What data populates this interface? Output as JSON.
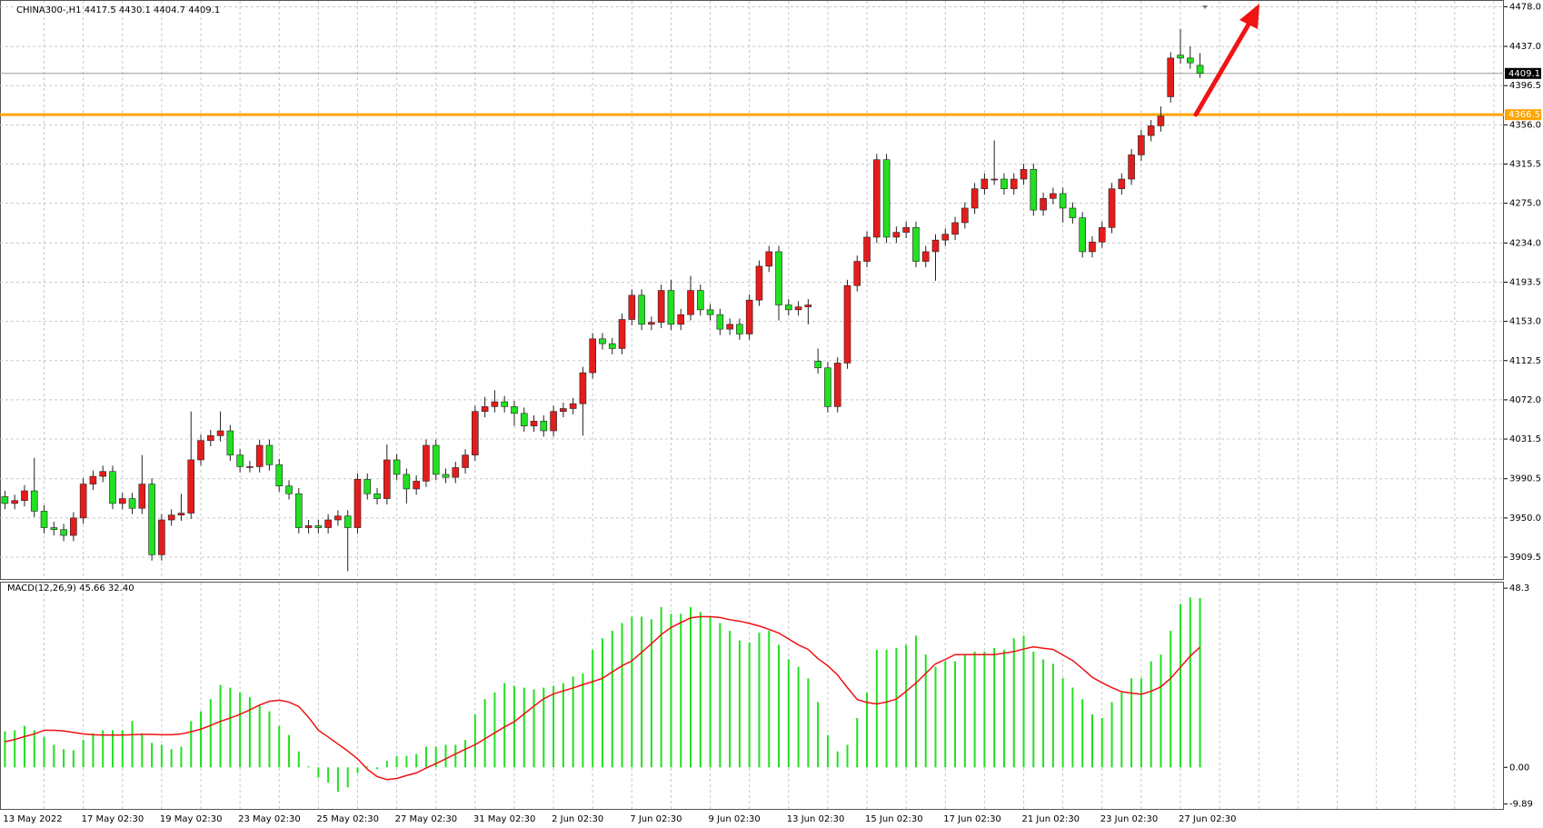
{
  "chart_data": [
    {
      "type": "candlestick",
      "title": "CHINA300-,H1  4417.5 4430.1 4404.7 4409.1",
      "up_color": "#e51c1c",
      "down_color": "#22e022",
      "categories": [
        "13 May 2022",
        null,
        null,
        null,
        null,
        null,
        null,
        null,
        "17 May 02:30",
        null,
        null,
        null,
        null,
        null,
        null,
        null,
        "19 May 02:30",
        null,
        null,
        null,
        null,
        null,
        null,
        null,
        "23 May 02:30",
        null,
        null,
        null,
        null,
        null,
        null,
        null,
        "25 May 02:30",
        null,
        null,
        null,
        null,
        null,
        null,
        null,
        "27 May 02:30",
        null,
        null,
        null,
        null,
        null,
        null,
        null,
        "31 May 02:30",
        null,
        null,
        null,
        null,
        null,
        null,
        null,
        "2 Jun 02:30",
        null,
        null,
        null,
        null,
        null,
        null,
        null,
        "7 Jun 02:30",
        null,
        null,
        null,
        null,
        null,
        null,
        null,
        "9 Jun 02:30",
        null,
        null,
        null,
        null,
        null,
        null,
        null,
        "13 Jun 02:30",
        null,
        null,
        null,
        null,
        null,
        null,
        null,
        "15 Jun 02:30",
        null,
        null,
        null,
        null,
        null,
        null,
        null,
        "17 Jun 02:30",
        null,
        null,
        null,
        null,
        null,
        null,
        null,
        "21 Jun 02:30",
        null,
        null,
        null,
        null,
        null,
        null,
        null,
        "23 Jun 02:30",
        null,
        null,
        null,
        null,
        null,
        null,
        null,
        "27 Jun 02:30",
        null,
        null
      ],
      "open": [
        3972,
        3965,
        3968,
        3978,
        3957,
        3940,
        3938,
        3932,
        3950,
        3985,
        3993,
        3998,
        3965,
        3970,
        3960,
        3985,
        3912,
        3948,
        3953,
        3955,
        4010,
        4030,
        4035,
        4040,
        4015,
        4003,
        4003,
        4025,
        4005,
        3983,
        3975,
        3940,
        3942,
        3940,
        3948,
        3952,
        3940,
        3990,
        3975,
        3970,
        4010,
        3995,
        3980,
        3988,
        4025,
        3995,
        3992,
        4002,
        4015,
        4060,
        4065,
        4070,
        4065,
        4058,
        4045,
        4050,
        4040,
        4060,
        4063,
        4068,
        4100,
        4135,
        4130,
        4125,
        4155,
        4180,
        4150,
        4152,
        4185,
        4150,
        4160,
        4185,
        4165,
        4160,
        4145,
        4150,
        4140,
        4175,
        4210,
        4225,
        4170,
        4165,
        4168,
        4112,
        4105,
        4065,
        4110,
        4190,
        4215,
        4240,
        4320,
        4240,
        4245,
        4250,
        4215,
        4225,
        4237,
        4243,
        4255,
        4270,
        4290,
        4300,
        4300,
        4290,
        4300,
        4310,
        4268,
        4280,
        4285,
        4270,
        4260,
        4225,
        4235,
        4250,
        4290,
        4300,
        4325,
        4345,
        4355,
        4385,
        4428,
        4425,
        4417.5
      ],
      "high": [
        3978,
        3974,
        3984,
        4012,
        3963,
        3946,
        3944,
        3956,
        3991,
        3999,
        4004,
        4004,
        3976,
        3976,
        4015,
        3991,
        3954,
        3959,
        3975,
        4060,
        4036,
        4041,
        4060,
        4046,
        4021,
        4009,
        4031,
        4031,
        4011,
        3989,
        3981,
        3948,
        3948,
        3954,
        3958,
        3958,
        3996,
        3996,
        3981,
        4026,
        4016,
        4001,
        3994,
        4031,
        4031,
        4001,
        4008,
        4021,
        4066,
        4075,
        4082,
        4076,
        4071,
        4064,
        4056,
        4056,
        4066,
        4069,
        4074,
        4106,
        4141,
        4141,
        4136,
        4161,
        4186,
        4186,
        4158,
        4191,
        4196,
        4166,
        4200,
        4191,
        4171,
        4166,
        4156,
        4156,
        4181,
        4216,
        4231,
        4231,
        4176,
        4174,
        4176,
        4125,
        4111,
        4116,
        4196,
        4221,
        4246,
        4326,
        4326,
        4251,
        4256,
        4256,
        4231,
        4243,
        4249,
        4261,
        4276,
        4296,
        4306,
        4340,
        4306,
        4306,
        4316,
        4316,
        4286,
        4291,
        4291,
        4276,
        4266,
        4241,
        4256,
        4296,
        4306,
        4331,
        4351,
        4361,
        4375,
        4431,
        4455,
        4437,
        4430.1
      ],
      "low": [
        3959,
        3959,
        3962,
        3951,
        3934,
        3932,
        3926,
        3926,
        3944,
        3979,
        3987,
        3959,
        3959,
        3954,
        3954,
        3906,
        3906,
        3942,
        3947,
        3949,
        4004,
        4024,
        4029,
        4009,
        3997,
        3997,
        3997,
        3999,
        3977,
        3969,
        3934,
        3934,
        3934,
        3934,
        3942,
        3895,
        3934,
        3969,
        3964,
        3964,
        3989,
        3965,
        3974,
        3982,
        3989,
        3986,
        3986,
        3996,
        4009,
        4054,
        4059,
        4059,
        4045,
        4039,
        4039,
        4034,
        4034,
        4054,
        4057,
        4035,
        4094,
        4124,
        4119,
        4119,
        4149,
        4144,
        4144,
        4146,
        4144,
        4144,
        4154,
        4159,
        4154,
        4139,
        4139,
        4134,
        4134,
        4169,
        4204,
        4154,
        4159,
        4159,
        4150,
        4099,
        4059,
        4059,
        4104,
        4184,
        4209,
        4234,
        4234,
        4234,
        4239,
        4209,
        4209,
        4195,
        4231,
        4237,
        4249,
        4264,
        4284,
        4294,
        4284,
        4284,
        4294,
        4262,
        4262,
        4274,
        4255,
        4254,
        4219,
        4219,
        4229,
        4244,
        4284,
        4294,
        4319,
        4339,
        4349,
        4379,
        4419,
        4414,
        4404.7
      ],
      "close": [
        3965,
        3968,
        3978,
        3957,
        3940,
        3938,
        3932,
        3950,
        3985,
        3993,
        3998,
        3965,
        3970,
        3960,
        3985,
        3912,
        3948,
        3953,
        3955,
        4010,
        4030,
        4035,
        4040,
        4015,
        4003,
        4003,
        4025,
        4005,
        3983,
        3975,
        3940,
        3942,
        3940,
        3948,
        3952,
        3940,
        3990,
        3975,
        3970,
        4010,
        3995,
        3980,
        3988,
        4025,
        3995,
        3992,
        4002,
        4015,
        4060,
        4065,
        4070,
        4065,
        4058,
        4045,
        4050,
        4040,
        4060,
        4063,
        4068,
        4100,
        4135,
        4130,
        4125,
        4155,
        4180,
        4150,
        4152,
        4185,
        4150,
        4160,
        4185,
        4165,
        4160,
        4145,
        4150,
        4140,
        4175,
        4210,
        4225,
        4170,
        4165,
        4168,
        4170,
        4105,
        4065,
        4110,
        4190,
        4215,
        4240,
        4320,
        4240,
        4245,
        4250,
        4215,
        4225,
        4237,
        4243,
        4255,
        4270,
        4290,
        4300,
        4300,
        4290,
        4300,
        4310,
        4268,
        4280,
        4285,
        4270,
        4260,
        4225,
        4235,
        4250,
        4290,
        4300,
        4325,
        4345,
        4355,
        4365,
        4425,
        4425,
        4420,
        4409.1
      ],
      "ylim": [
        3887,
        4484
      ],
      "yticks": [
        {
          "value": 4478,
          "label": "4478.0"
        },
        {
          "value": 4437,
          "label": "4437.0"
        },
        4396.5,
        {
          "value": 4356,
          "label": "4356.0"
        },
        4315.5,
        {
          "value": 4275,
          "label": "4275.0"
        },
        {
          "value": 4234,
          "label": "4234.0"
        },
        4193.5,
        {
          "value": 4153,
          "label": "4153.0"
        },
        4112.5,
        {
          "value": 4072,
          "label": "4072.0"
        },
        4031.5,
        3990.5,
        {
          "value": 3950,
          "label": "3950.0"
        },
        3909.5
      ],
      "grid": true,
      "levels": [
        {
          "value": 4409.1,
          "color": "#9a9a9a",
          "label_bg": "#000000"
        },
        {
          "value": 4366.5,
          "color": "#ffa500",
          "label_bg": "#ffa500"
        }
      ]
    },
    {
      "type": "macd",
      "label": "MACD(12,26,9) 45.66 32.40",
      "ylim": [
        -11.2,
        49.8
      ],
      "yticks": [
        48.3,
        {
          "value": 0,
          "label": "0.00"
        },
        -9.89
      ],
      "series": [
        {
          "type": "bar",
          "color": "#22e022",
          "values": [
            9.7,
            10,
            11.2,
            10,
            8.2,
            6.1,
            4.9,
            4.6,
            7.4,
            9.2,
            10,
            10,
            10,
            12.5,
            9.2,
            6.6,
            6.1,
            4.9,
            5.6,
            12.5,
            15.1,
            18.4,
            22.2,
            21.5,
            20.2,
            18.9,
            16.9,
            15.1,
            11.2,
            8.7,
            4.3,
            0.3,
            -2.8,
            -4.1,
            -6.6,
            -5.4,
            -1.5,
            0.3,
            -0.5,
            1.8,
            3.1,
            3.1,
            3.6,
            5.6,
            5.6,
            6.1,
            6.1,
            7.4,
            14.3,
            18.4,
            20.2,
            22.7,
            22,
            21.5,
            21,
            21.5,
            22,
            22.7,
            24.5,
            25.3,
            31.7,
            34.8,
            36.8,
            38.9,
            40.6,
            40.6,
            39.9,
            43.2,
            41.4,
            41.4,
            43.2,
            41.9,
            40.6,
            38.9,
            36.8,
            34.2,
            33.7,
            36.3,
            36.8,
            33,
            29.1,
            27.1,
            24,
            17.6,
            8.7,
            4.3,
            6.1,
            13.3,
            20.2,
            31.7,
            31.7,
            32.2,
            33,
            35.5,
            30.4,
            27.1,
            28.6,
            28.6,
            30.4,
            31.2,
            31.2,
            32.2,
            31.7,
            34.8,
            35.5,
            31.2,
            29.1,
            27.9,
            24,
            21.5,
            18.4,
            14.3,
            13.3,
            17.6,
            20.2,
            24,
            24,
            28.6,
            30.4,
            36.8,
            44,
            45.8,
            45.66
          ]
        },
        {
          "type": "line",
          "color": "#ee1111",
          "values": [
            6.9,
            7.5,
            8.3,
            9.0,
            10.0,
            10.0,
            9.8,
            9.4,
            9.0,
            8.8,
            8.7,
            8.7,
            8.7,
            8.8,
            8.9,
            8.9,
            8.8,
            8.8,
            9.0,
            9.6,
            10.3,
            11.3,
            12.4,
            13.3,
            14.3,
            15.5,
            16.8,
            17.8,
            18.1,
            17.6,
            16.4,
            13.5,
            10.0,
            8.2,
            6.3,
            4.4,
            2.3,
            -0.5,
            -2.5,
            -3.3,
            -3.0,
            -2.2,
            -1.5,
            -0.2,
            1.0,
            2.3,
            3.6,
            4.9,
            6.1,
            7.7,
            9.3,
            10.9,
            12.3,
            14.4,
            16.5,
            18.5,
            19.8,
            20.6,
            21.4,
            22.3,
            23.1,
            24.0,
            25.7,
            27.4,
            28.7,
            31.0,
            33.3,
            35.8,
            37.7,
            39.0,
            40.3,
            40.6,
            40.6,
            40.4,
            39.8,
            39.4,
            38.8,
            38.1,
            37.2,
            36.2,
            34.6,
            33.0,
            31.8,
            29.3,
            27.4,
            24.9,
            21.5,
            18.3,
            17.5,
            17.1,
            17.6,
            18.4,
            20.5,
            22.7,
            25.3,
            27.9,
            29.1,
            30.4,
            30.4,
            30.4,
            30.4,
            30.4,
            30.8,
            31.2,
            31.9,
            32.5,
            32.1,
            31.8,
            30.3,
            28.8,
            26.6,
            24.3,
            22.8,
            21.5,
            20.4,
            20.0,
            19.7,
            20.5,
            21.7,
            24.0,
            27.0,
            30.0,
            32.4
          ]
        }
      ]
    }
  ]
}
